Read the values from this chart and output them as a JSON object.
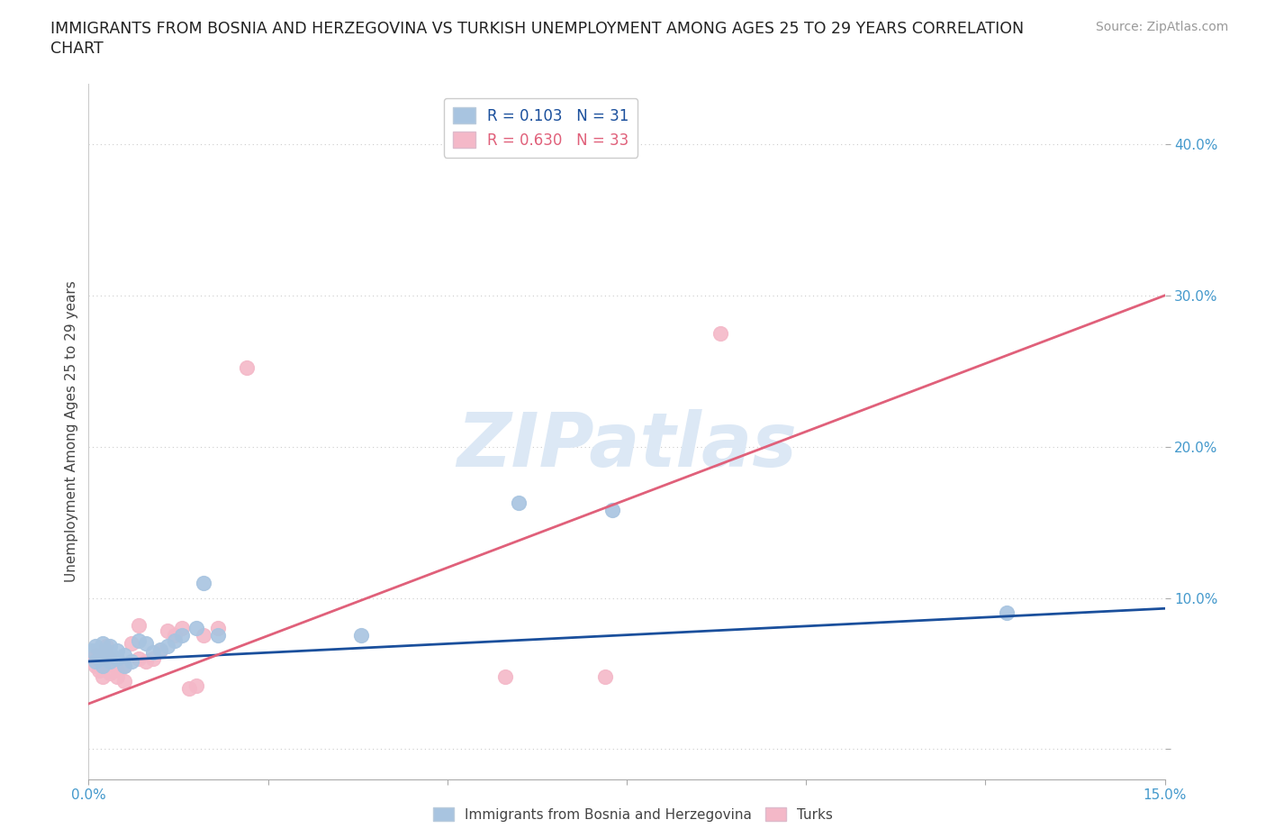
{
  "title_line1": "IMMIGRANTS FROM BOSNIA AND HERZEGOVINA VS TURKISH UNEMPLOYMENT AMONG AGES 25 TO 29 YEARS CORRELATION",
  "title_line2": "CHART",
  "source": "Source: ZipAtlas.com",
  "ylabel": "Unemployment Among Ages 25 to 29 years",
  "xlim": [
    0.0,
    0.15
  ],
  "ylim": [
    -0.02,
    0.44
  ],
  "yticks": [
    0.0,
    0.1,
    0.2,
    0.3,
    0.4
  ],
  "ytick_labels": [
    "",
    "10.0%",
    "20.0%",
    "30.0%",
    "40.0%"
  ],
  "xticks": [
    0.0,
    0.025,
    0.05,
    0.075,
    0.1,
    0.125,
    0.15
  ],
  "xtick_labels": [
    "0.0%",
    "",
    "",
    "",
    "",
    "",
    "15.0%"
  ],
  "R_bosnia": 0.103,
  "N_bosnia": 31,
  "R_turks": 0.63,
  "N_turks": 33,
  "color_bosnia": "#a8c4e0",
  "color_turks": "#f4b8c8",
  "line_color_bosnia": "#1a4f9c",
  "line_color_turks": "#e0607a",
  "watermark": "ZIPatlas",
  "watermark_color": "#dce8f5",
  "bosnia_x": [
    0.0005,
    0.001,
    0.001,
    0.0015,
    0.0015,
    0.002,
    0.002,
    0.002,
    0.0025,
    0.003,
    0.003,
    0.003,
    0.004,
    0.004,
    0.005,
    0.005,
    0.006,
    0.007,
    0.008,
    0.009,
    0.01,
    0.011,
    0.012,
    0.013,
    0.015,
    0.016,
    0.018,
    0.038,
    0.06,
    0.073,
    0.128
  ],
  "bosnia_y": [
    0.065,
    0.058,
    0.068,
    0.06,
    0.066,
    0.055,
    0.062,
    0.07,
    0.063,
    0.058,
    0.064,
    0.068,
    0.06,
    0.065,
    0.055,
    0.062,
    0.058,
    0.072,
    0.07,
    0.064,
    0.066,
    0.068,
    0.072,
    0.075,
    0.08,
    0.11,
    0.075,
    0.075,
    0.163,
    0.158,
    0.09
  ],
  "turks_x": [
    0.0005,
    0.001,
    0.001,
    0.0015,
    0.0015,
    0.002,
    0.002,
    0.002,
    0.0025,
    0.003,
    0.003,
    0.003,
    0.004,
    0.004,
    0.005,
    0.005,
    0.006,
    0.007,
    0.007,
    0.008,
    0.009,
    0.01,
    0.011,
    0.012,
    0.013,
    0.014,
    0.015,
    0.016,
    0.018,
    0.022,
    0.058,
    0.072,
    0.088
  ],
  "turks_y": [
    0.06,
    0.055,
    0.062,
    0.052,
    0.058,
    0.048,
    0.055,
    0.063,
    0.068,
    0.05,
    0.056,
    0.06,
    0.048,
    0.052,
    0.045,
    0.055,
    0.07,
    0.06,
    0.082,
    0.058,
    0.06,
    0.065,
    0.078,
    0.075,
    0.08,
    0.04,
    0.042,
    0.075,
    0.08,
    0.252,
    0.048,
    0.048,
    0.275
  ],
  "bosnia_line_x": [
    0.0,
    0.15
  ],
  "bosnia_line_y": [
    0.058,
    0.093
  ],
  "turks_line_x": [
    0.0,
    0.15
  ],
  "turks_line_y": [
    0.03,
    0.3
  ]
}
